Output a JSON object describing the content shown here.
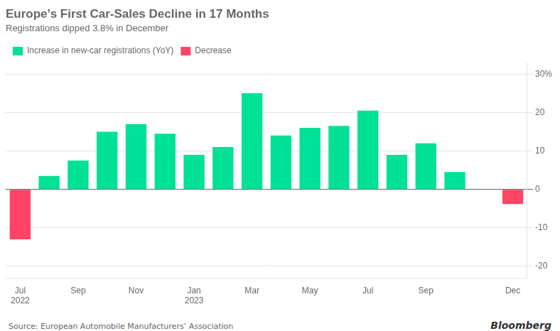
{
  "chart_data": {
    "type": "bar",
    "title": "Europe’s First Car-Sales Decline in 17 Months",
    "subtitle": "Registrations dipped 3.8% in December",
    "source": "Source: European Automobile Manufacturers’ Association",
    "annotations": [
      "Bloomberg"
    ],
    "categories": [
      "Jul\n2022",
      null,
      "Sep",
      null,
      "Nov",
      null,
      "Jan\n2023",
      null,
      "Mar",
      null,
      "May",
      null,
      "Jul",
      null,
      "Sep",
      null,
      null,
      "Dec"
    ],
    "series": [
      {
        "name": "Increase in new-car registrations (YoY)",
        "color": "#00e096",
        "values": [
          null,
          3.5,
          7.5,
          15.0,
          17.0,
          14.5,
          9.0,
          11.0,
          25.0,
          14.0,
          16.0,
          16.5,
          20.5,
          9.0,
          12.0,
          4.5,
          null,
          null
        ]
      },
      {
        "name": "Decrease",
        "color": "#ff4466",
        "values": [
          -13.0,
          null,
          null,
          null,
          null,
          null,
          null,
          null,
          null,
          null,
          null,
          null,
          null,
          null,
          null,
          null,
          null,
          -3.8
        ]
      }
    ],
    "ylim": [
      -23,
      33
    ],
    "yticks": [
      -20,
      -10,
      0,
      10,
      20,
      {
        "value": 30,
        "label": "30%"
      }
    ],
    "grid": true,
    "legend": "top-left"
  }
}
